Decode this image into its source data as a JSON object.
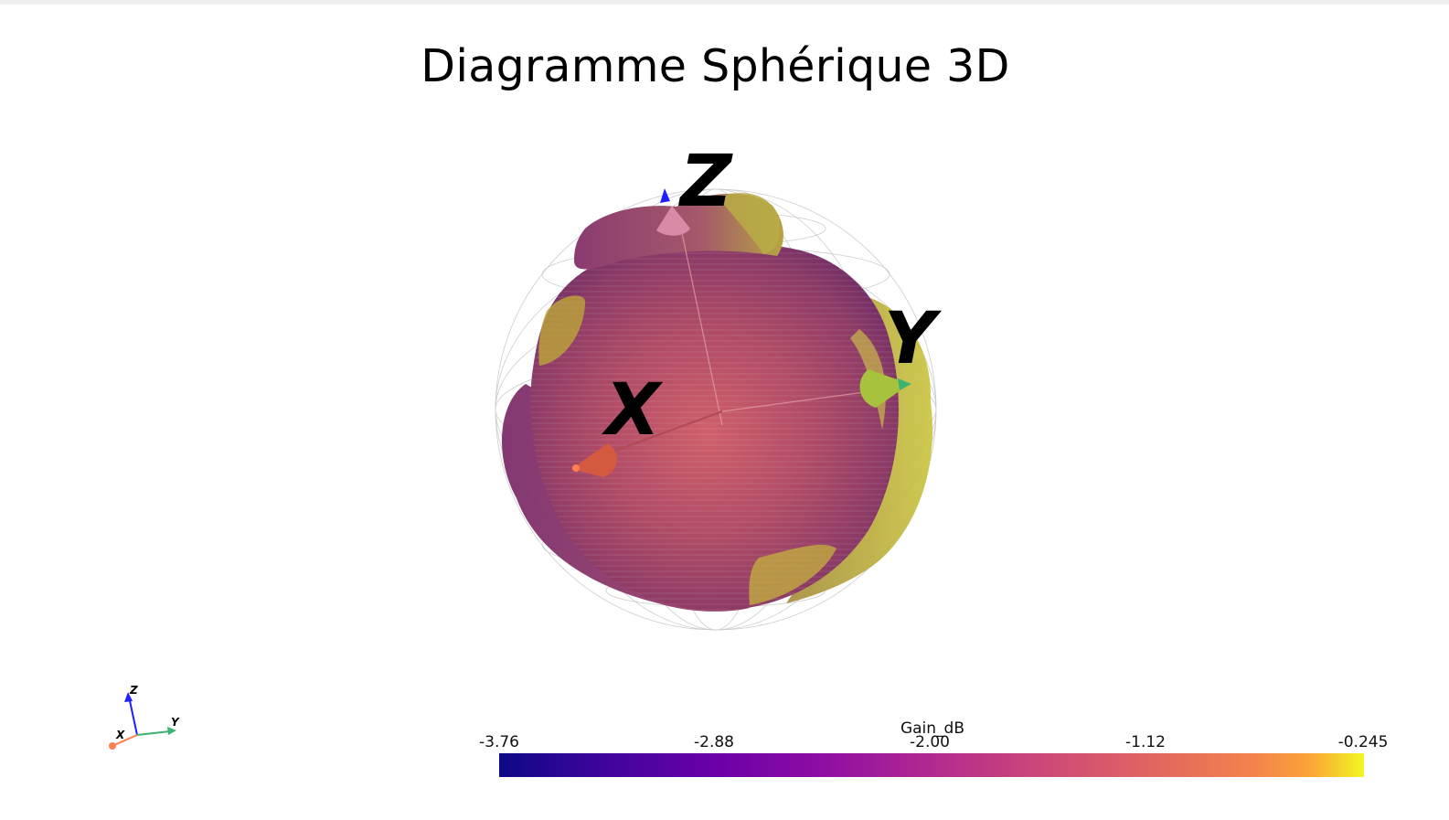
{
  "title": "Diagramme Sphérique 3D",
  "axes_labels": {
    "x": "X",
    "y": "Y",
    "z": "Z"
  },
  "orientation_widget": {
    "x": "X",
    "y": "Y",
    "z": "Z"
  },
  "colors": {
    "x_axis": "#ff7f50",
    "y_axis": "#3cb371",
    "z_axis": "#1f1fff",
    "colormap": "plasma"
  },
  "chart_data": {
    "type": "3d-surface",
    "colormap": "plasma",
    "colorbar": {
      "title": "Gain_dB",
      "min": -3.76,
      "max": -0.245,
      "ticks": [
        "-3.76",
        "-2.88",
        "-2.00",
        "-1.12",
        "-0.245"
      ],
      "tick_values": [
        -3.76,
        -2.88,
        -2.0,
        -1.12,
        -0.245
      ]
    },
    "reference_sphere": "wireframe",
    "axes": [
      "X",
      "Y",
      "Z"
    ]
  }
}
